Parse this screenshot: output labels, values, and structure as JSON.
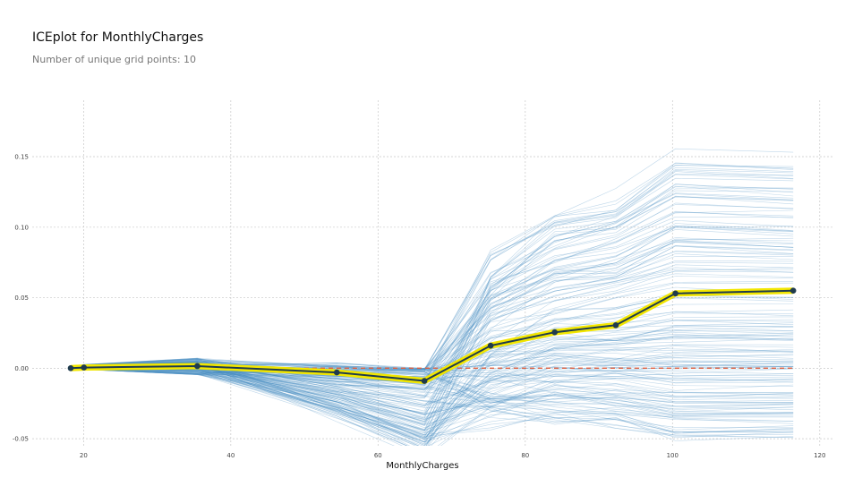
{
  "title": "ICEplot for MonthlyCharges",
  "subtitle": "Number of unique grid points: 10",
  "chart_data": {
    "type": "line",
    "title": "ICEplot for MonthlyCharges",
    "subtitle": "Number of unique grid points: 10",
    "xlabel": "MonthlyCharges",
    "ylabel": "",
    "xlim": [
      14,
      121
    ],
    "ylim": [
      -0.055,
      0.19
    ],
    "xticks": [
      20,
      40,
      60,
      80,
      100,
      120
    ],
    "yticks": [
      -0.05,
      0.0,
      0.05,
      0.1,
      0.15
    ],
    "xtick_labels": [
      "20",
      "40",
      "60",
      "80",
      "100",
      "120"
    ],
    "ytick_labels": [
      "-0.05",
      "0.00",
      "0.05",
      "0.10",
      "0.15"
    ],
    "grid": true,
    "x": [
      18.25,
      20.05,
      35.45,
      54.4,
      66.3,
      75.3,
      84.0,
      92.3,
      100.4,
      116.4
    ],
    "series": [
      {
        "role": "average",
        "values": [
          0.0,
          0.0005,
          0.0015,
          -0.003,
          -0.009,
          0.016,
          0.0255,
          0.0305,
          0.053,
          0.055
        ],
        "color": "#1f3b4d",
        "highlight": "#f2e600"
      }
    ],
    "reference_line": {
      "y": 0.0,
      "color": "#e06040",
      "style": "dashed"
    },
    "ice_color": "#4a90c2"
  }
}
